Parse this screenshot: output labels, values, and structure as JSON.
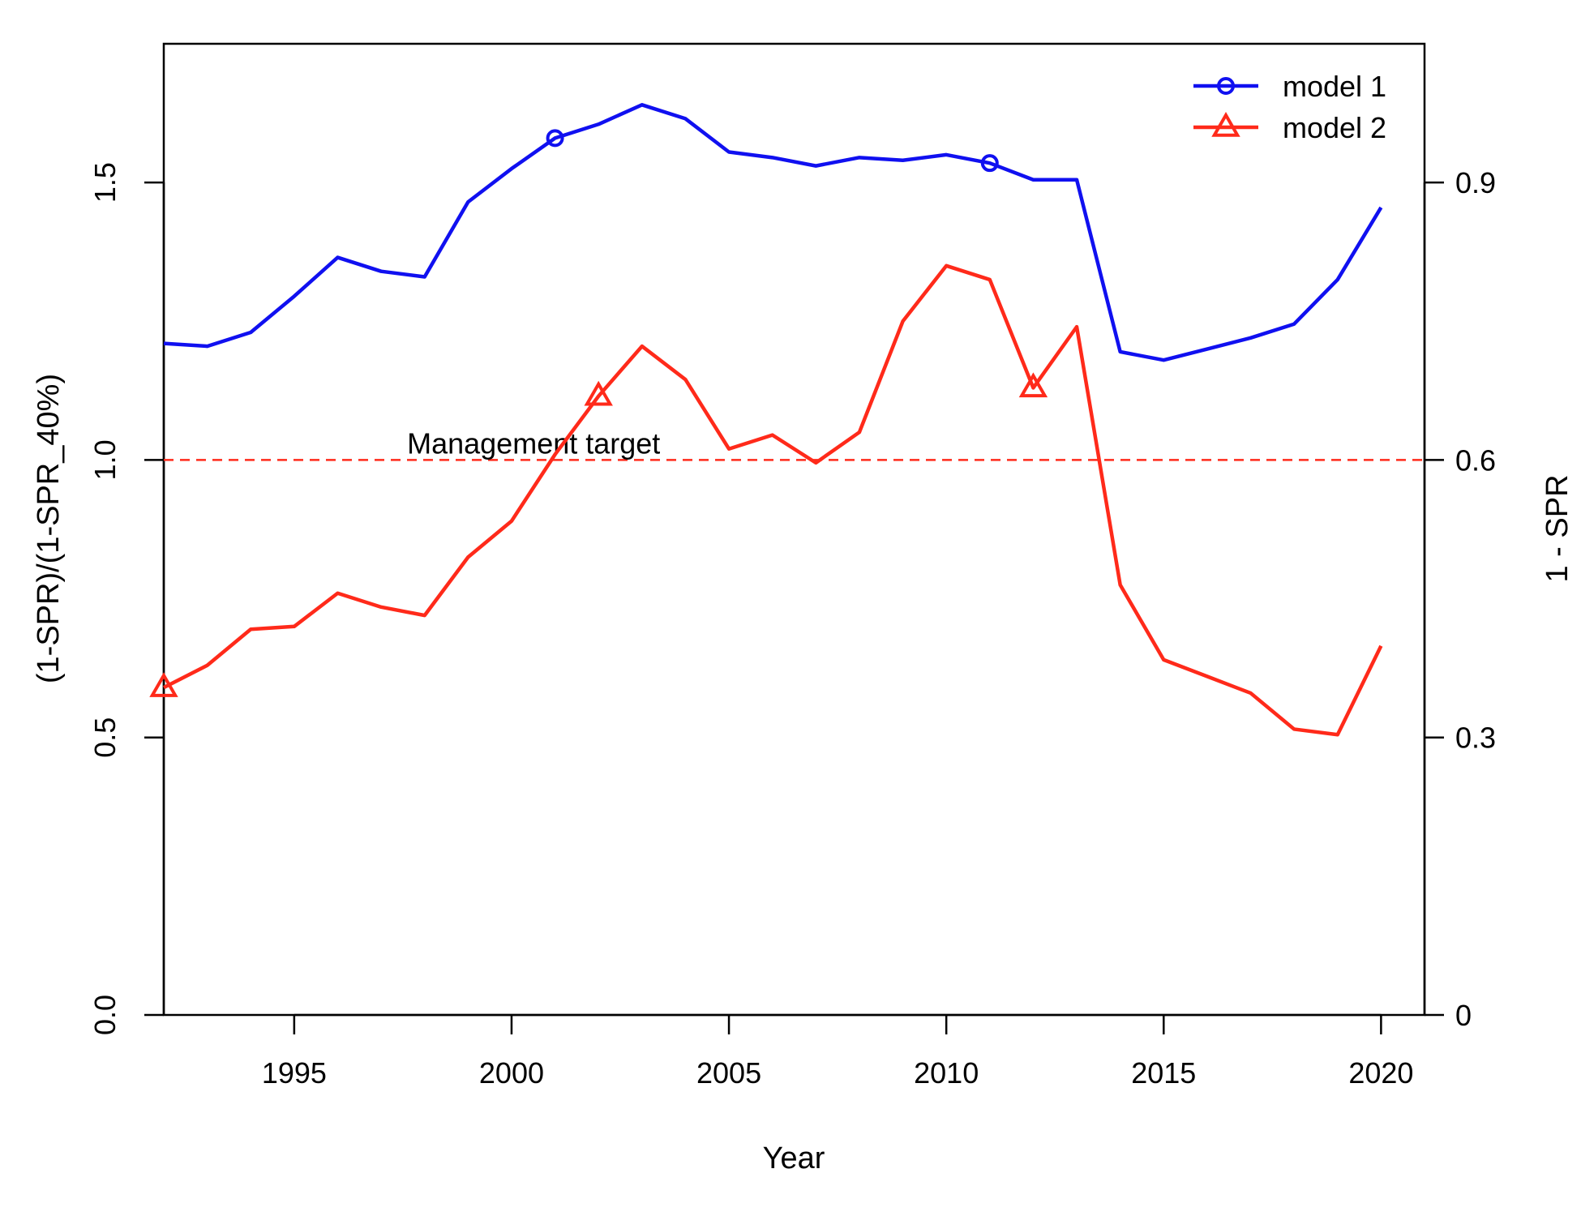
{
  "chart_data": {
    "type": "line",
    "title": "",
    "xlabel": "Year",
    "ylabel": "(1-SPR)/(1-SPR_40%)",
    "ylabel_right": "1 - SPR",
    "xlim": [
      1992,
      2021
    ],
    "ylim": [
      0,
      1.75
    ],
    "x_ticks": [
      1995,
      2000,
      2005,
      2010,
      2015,
      2020
    ],
    "y_ticks": [
      0.0,
      0.5,
      1.0,
      1.5
    ],
    "y_tick_labels": [
      "0.0",
      "0.5",
      "1.0",
      "1.5"
    ],
    "y_right_ticks": [
      0,
      0.3,
      0.6,
      0.9
    ],
    "y_right_tick_labels": [
      "0",
      "0.3",
      "0.6",
      "0.9"
    ],
    "y_right_scale": 0.6,
    "grid": false,
    "legend_position": "top-right",
    "reference_line": {
      "y": 1.0,
      "label": "Management target",
      "label_x": 2002,
      "color": "#ff2a1a",
      "style": "dashed"
    },
    "x": [
      1992,
      1993,
      1994,
      1995,
      1996,
      1997,
      1998,
      1999,
      2000,
      2001,
      2002,
      2003,
      2004,
      2005,
      2006,
      2007,
      2008,
      2009,
      2010,
      2011,
      2012,
      2013,
      2014,
      2015,
      2016,
      2017,
      2018,
      2019,
      2020
    ],
    "series": [
      {
        "name": "model 1",
        "color": "#1010f0",
        "marker": "circle",
        "marker_x": [
          2001,
          2011
        ],
        "values": [
          1.21,
          1.205,
          1.23,
          1.295,
          1.365,
          1.34,
          1.33,
          1.465,
          1.525,
          1.58,
          1.605,
          1.64,
          1.615,
          1.555,
          1.545,
          1.53,
          1.545,
          1.54,
          1.55,
          1.535,
          1.505,
          1.505,
          1.195,
          1.18,
          1.2,
          1.22,
          1.245,
          1.325,
          1.455
        ]
      },
      {
        "name": "model 2",
        "color": "#ff2a1a",
        "marker": "triangle",
        "marker_x": [
          1992,
          2002,
          2012
        ],
        "values": [
          0.59,
          0.63,
          0.695,
          0.7,
          0.76,
          0.735,
          0.72,
          0.825,
          0.89,
          1.01,
          1.115,
          1.205,
          1.145,
          1.02,
          1.045,
          0.995,
          1.05,
          1.25,
          1.35,
          1.325,
          1.13,
          1.24,
          0.775,
          0.64,
          0.61,
          0.58,
          0.515,
          0.505,
          0.665
        ]
      }
    ]
  }
}
